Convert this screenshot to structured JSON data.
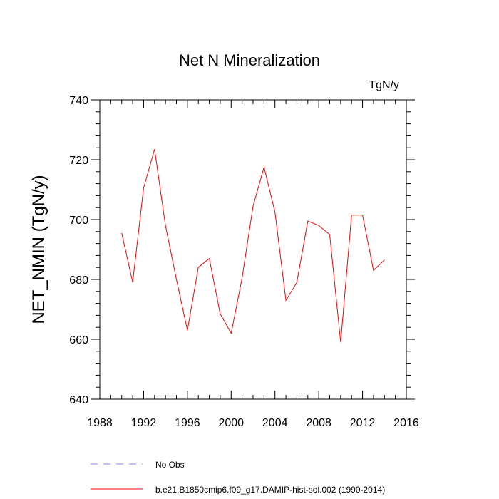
{
  "chart_data": {
    "type": "line",
    "title": "Net N Mineralization",
    "units_label": "TgN/y",
    "xlabel": "",
    "ylabel": "NET_NMIN  (TgN/y)",
    "xlim": [
      1988,
      2016
    ],
    "ylim": [
      640,
      740
    ],
    "x_ticks": [
      1988,
      1992,
      1996,
      2000,
      2004,
      2008,
      2012,
      2016
    ],
    "y_ticks": [
      640,
      660,
      680,
      700,
      720,
      740
    ],
    "grid": false,
    "legend_position": "bottom",
    "series": [
      {
        "name": "b.e21.B1850cmip6.f09_g17.DAMIP-hist-sol.002 (1990-2014)",
        "color": "#ff0000",
        "style": "solid",
        "x": [
          1990,
          1991,
          1992,
          1993,
          1994,
          1995,
          1996,
          1997,
          1998,
          1999,
          2000,
          2001,
          2002,
          2003,
          2004,
          2005,
          2006,
          2007,
          2008,
          2009,
          2010,
          2011,
          2012,
          2013,
          2014
        ],
        "values": [
          695.5,
          679.0,
          710.5,
          723.5,
          698.0,
          680.0,
          663.0,
          684.0,
          687.0,
          668.5,
          662.0,
          680.5,
          704.5,
          717.5,
          702.5,
          673.0,
          679.0,
          699.5,
          698.0,
          695.0,
          659.0,
          701.5,
          701.5,
          683.0,
          686.5
        ]
      },
      {
        "name": "No Obs",
        "color": "#8080ff",
        "style": "dashed",
        "x": [],
        "values": []
      }
    ]
  }
}
